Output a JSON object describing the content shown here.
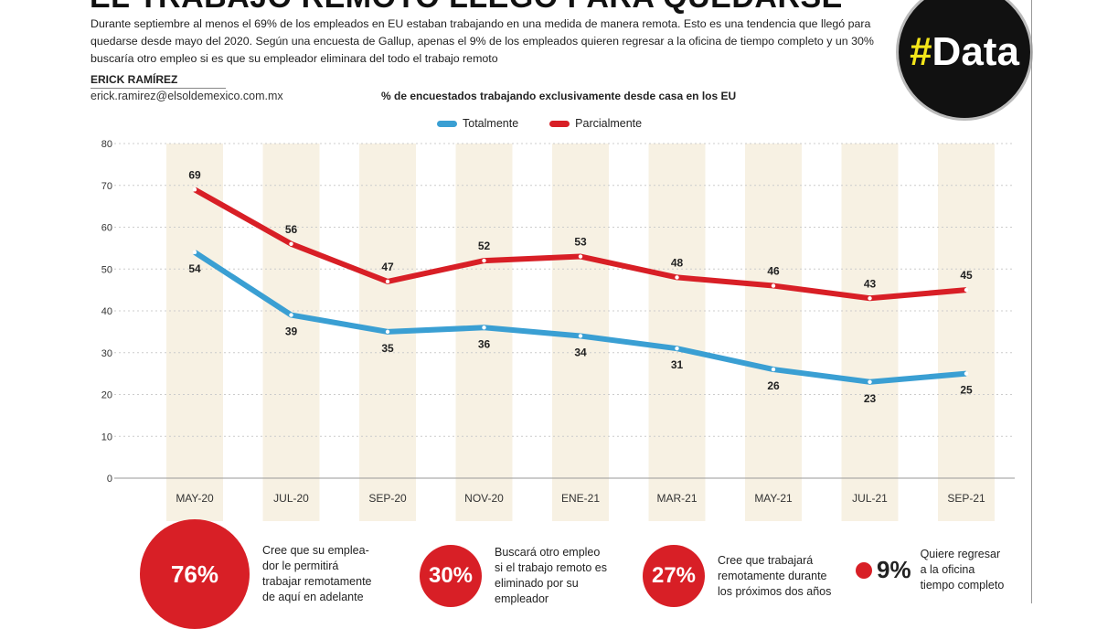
{
  "header": {
    "title": "EL TRABAJO REMOTO LLEGÓ PARA QUEDARSE",
    "intro": "Durante septiembre al menos el 69% de los empleados en EU estaban trabajando en una medida de manera remota. Esto es una tendencia que llegó para quedarse desde mayo del 2020. Según una encuesta de Gallup, apenas el 9% de los empleados quieren regresar a la oficina de tiempo completo y un 30% buscaría otro empleo si es que su empleador eliminara del todo el trabajo remoto",
    "author": "ERICK RAMÍREZ",
    "email": "erick.ramirez@elsoldemexico.com.mx",
    "badge_hash": "#",
    "badge_text": "Data"
  },
  "chart_data": {
    "type": "line",
    "title": "% de encuestados trabajando exclusivamente desde casa en los EU",
    "categories": [
      "MAY-20",
      "JUL-20",
      "SEP-20",
      "NOV-20",
      "ENE-21",
      "MAR-21",
      "MAY-21",
      "JUL-21",
      "SEP-21"
    ],
    "ylim": [
      0,
      80
    ],
    "yticks": [
      0,
      10,
      20,
      30,
      40,
      50,
      60,
      70,
      80
    ],
    "grid": true,
    "legend": "top",
    "series": [
      {
        "name": "Totalmente",
        "color": "#3a9fd3",
        "values": [
          54,
          39,
          35,
          36,
          34,
          31,
          26,
          23,
          25
        ]
      },
      {
        "name": "Parcialmente",
        "color": "#d81f26",
        "values": [
          69,
          56,
          47,
          52,
          53,
          48,
          46,
          43,
          45
        ]
      }
    ]
  },
  "stats": [
    {
      "value": "76%",
      "text": "Cree que su emplea-\ndor le permitirá\ntrabajar remotamente\nde aquí en adelante"
    },
    {
      "value": "30%",
      "text": "Buscará otro empleo\nsi el trabajo remoto es\neliminado por su\nempleador"
    },
    {
      "value": "27%",
      "text": "Cree que trabajará\nremotamente durante\nlos próximos dos años"
    },
    {
      "value": "9%",
      "text": "Quiere regresar\na la oficina\ntiempo completo"
    }
  ]
}
